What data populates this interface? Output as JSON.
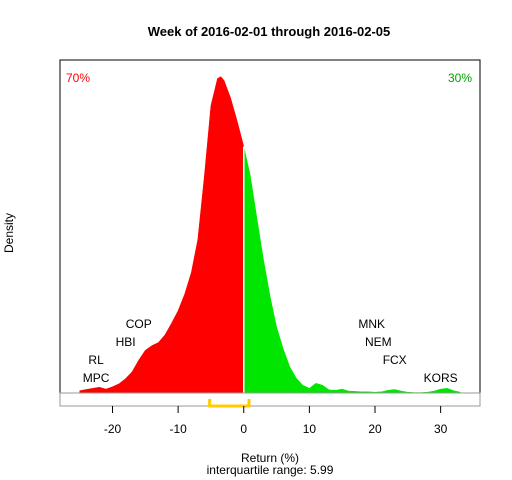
{
  "chart_data": {
    "type": "area",
    "title": "Week of 2016-02-01 through 2016-02-05",
    "xlabel": "Return (%)",
    "ylabel": "Density",
    "subtitle": "interquartile range: 5.99",
    "xlim": [
      -28,
      36
    ],
    "ylim": [
      0,
      0.085
    ],
    "x_ticks": [
      -20,
      -10,
      0,
      10,
      20,
      30
    ],
    "x_tick_labels": [
      "-20",
      "-10",
      "0",
      "10",
      "20",
      "30"
    ],
    "split_at": 0,
    "negative_share_label": "70%",
    "positive_share_label": "30%",
    "colors": {
      "negative": "#ff0000",
      "positive": "#00e600",
      "split_line": "#ffffff",
      "iqr": "#ffcc00",
      "negative_label": "#ff0000",
      "positive_label": "#00a000"
    },
    "iqr": [
      -5.2,
      0.8
    ],
    "density": {
      "x": [
        -25,
        -23,
        -22,
        -21,
        -20,
        -19,
        -18,
        -17,
        -16,
        -15,
        -14,
        -13,
        -12,
        -11,
        -10,
        -9,
        -8,
        -7,
        -6,
        -5,
        -4,
        -3.5,
        -3,
        -2,
        -1,
        0,
        0.01,
        1,
        2,
        3,
        4,
        5,
        6,
        7,
        8,
        9,
        10,
        11,
        12,
        13,
        14,
        15,
        16,
        17,
        18,
        19,
        20,
        21,
        22,
        23,
        24,
        25,
        26,
        27,
        28,
        29,
        30,
        31,
        32,
        33
      ],
      "y": [
        0.0006,
        0.0012,
        0.0015,
        0.001,
        0.0016,
        0.0024,
        0.0037,
        0.0055,
        0.0085,
        0.011,
        0.0122,
        0.013,
        0.015,
        0.018,
        0.0212,
        0.0255,
        0.031,
        0.0395,
        0.056,
        0.074,
        0.081,
        0.0815,
        0.0805,
        0.076,
        0.07,
        0.0635,
        0.0635,
        0.056,
        0.045,
        0.0345,
        0.025,
        0.017,
        0.0115,
        0.0068,
        0.0038,
        0.002,
        0.0012,
        0.0025,
        0.002,
        0.0008,
        0.0007,
        0.001,
        0.0005,
        0.0004,
        0.0003,
        0.0003,
        0.0002,
        0.0003,
        0.0007,
        0.0009,
        0.0005,
        0.0002,
        0.0001,
        0.0001,
        0.0002,
        0.0005,
        0.001,
        0.0012,
        0.0006,
        0.0002
      ]
    },
    "annotations": [
      {
        "text": "RL",
        "x": -22.5,
        "row": 1
      },
      {
        "text": "MPC",
        "x": -22.5,
        "row": 0
      },
      {
        "text": "COP",
        "x": -16,
        "row": 3
      },
      {
        "text": "HBI",
        "x": -18,
        "row": 2
      },
      {
        "text": "MNK",
        "x": 19.5,
        "row": 3
      },
      {
        "text": "NEM",
        "x": 20.5,
        "row": 2
      },
      {
        "text": "FCX",
        "x": 23,
        "row": 1
      },
      {
        "text": "KORS",
        "x": 30,
        "row": 0
      }
    ]
  }
}
